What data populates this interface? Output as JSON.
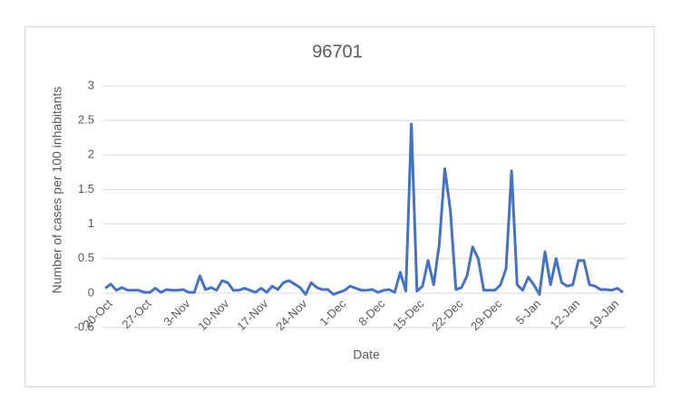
{
  "chart_data": {
    "type": "line",
    "title": "96701",
    "x_label": "Date",
    "y_label": "Number of cases per 100 inhabitants",
    "categories": [
      "20-Oct",
      null,
      null,
      null,
      null,
      null,
      null,
      "27-Oct",
      null,
      null,
      null,
      null,
      null,
      null,
      "3-Nov",
      null,
      null,
      null,
      null,
      null,
      null,
      "10-Nov",
      null,
      null,
      null,
      null,
      null,
      null,
      "17-Nov",
      null,
      null,
      null,
      null,
      null,
      null,
      "24-Nov",
      null,
      null,
      null,
      null,
      null,
      null,
      "1-Dec",
      null,
      null,
      null,
      null,
      null,
      null,
      "8-Dec",
      null,
      null,
      null,
      null,
      null,
      null,
      "15-Dec",
      null,
      null,
      null,
      null,
      null,
      null,
      "22-Dec",
      null,
      null,
      null,
      null,
      null,
      null,
      "29-Dec",
      null,
      null,
      null,
      null,
      null,
      null,
      "5-Jan",
      null,
      null,
      null,
      null,
      null,
      null,
      "12-Jan",
      null,
      null,
      null,
      null,
      null,
      null,
      "19-Jan",
      null,
      null
    ],
    "series": [
      {
        "name": "96701",
        "color": "#4472c4",
        "values": [
          0.07,
          0.13,
          0.04,
          0.08,
          0.04,
          0.04,
          0.04,
          0.01,
          0.01,
          0.07,
          0.01,
          0.05,
          0.04,
          0.04,
          0.05,
          0.01,
          0.01,
          0.25,
          0.05,
          0.08,
          0.04,
          0.18,
          0.15,
          0.04,
          0.04,
          0.07,
          0.04,
          0.01,
          0.07,
          0.01,
          0.1,
          0.05,
          0.15,
          0.18,
          0.13,
          0.08,
          -0.02,
          0.15,
          0.08,
          0.05,
          0.05,
          -0.02,
          0.01,
          0.04,
          0.1,
          0.07,
          0.04,
          0.04,
          0.05,
          0.01,
          0.04,
          0.05,
          0.01,
          0.3,
          0.03,
          2.45,
          0.03,
          0.1,
          0.47,
          0.12,
          0.7,
          1.8,
          1.2,
          0.05,
          0.08,
          0.25,
          0.67,
          0.5,
          0.04,
          0.04,
          0.04,
          0.12,
          0.35,
          1.77,
          0.12,
          0.04,
          0.23,
          0.12,
          -0.02,
          0.6,
          0.12,
          0.5,
          0.15,
          0.1,
          0.12,
          0.47,
          0.47,
          0.12,
          0.1,
          0.05,
          0.05,
          0.04,
          0.07,
          0.01
        ]
      }
    ],
    "ylim": [
      -0.5,
      3
    ],
    "yticks": [
      -0.5,
      0,
      0.5,
      1,
      1.5,
      2,
      2.5,
      3
    ],
    "grid": true
  }
}
